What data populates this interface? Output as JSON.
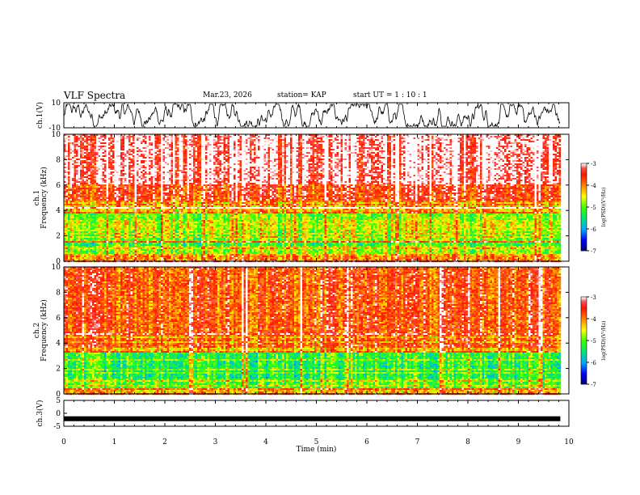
{
  "header": {
    "title": "VLF Spectra",
    "date": "Mar.23, 2026",
    "station": "station= KAP",
    "start": "start  UT =   1 : 10 : 1"
  },
  "chart_data": [
    {
      "type": "line",
      "name": "ch1-waveform",
      "ylabel": "ch.1(V)",
      "ylim": [
        -10,
        10
      ],
      "yticks": [
        "10",
        "-10"
      ],
      "xlim": [
        0,
        10
      ],
      "x_data_end": 9.83,
      "description_values": "noisy waveform oscillating roughly between -9 and 9 V"
    },
    {
      "type": "heatmap",
      "name": "ch1-spectrogram",
      "ylabel_line1": "ch.1",
      "ylabel_line2": "Frequency (kHz)",
      "ylim": [
        0,
        10
      ],
      "yticks": [
        "0",
        "2",
        "4",
        "6",
        "8",
        "10"
      ],
      "xlim": [
        0,
        10
      ],
      "bands_khz": [
        {
          "from": 0,
          "to": 0.5,
          "level": -4.0
        },
        {
          "from": 0.5,
          "to": 1.2,
          "level": -4.8
        },
        {
          "from": 1.2,
          "to": 1.6,
          "level": -5.2
        },
        {
          "from": 1.6,
          "to": 2.4,
          "level": -4.9
        },
        {
          "from": 2.4,
          "to": 3.2,
          "level": -4.6
        },
        {
          "from": 3.2,
          "to": 3.7,
          "level": -4.9
        },
        {
          "from": 3.7,
          "to": 4.8,
          "level": -4.3
        },
        {
          "from": 4.8,
          "to": 6.0,
          "level": -3.6
        },
        {
          "from": 6.0,
          "to": 10.0,
          "level": -3.1
        }
      ],
      "colorbar": {
        "label": "log(PSD)(V²/Hz)",
        "range": [
          -7,
          -3
        ],
        "ticks": [
          "-3",
          "-4",
          "-5",
          "-6",
          "-7"
        ]
      }
    },
    {
      "type": "heatmap",
      "name": "ch2-spectrogram",
      "ylabel_line1": "ch.2",
      "ylabel_line2": "Frequency (kHz)",
      "ylim": [
        0,
        10
      ],
      "yticks": [
        "0",
        "2",
        "4",
        "6",
        "8",
        "10"
      ],
      "xlim": [
        0,
        10
      ],
      "bands_khz": [
        {
          "from": 0,
          "to": 0.5,
          "level": -4.2
        },
        {
          "from": 0.5,
          "to": 1.2,
          "level": -5.0
        },
        {
          "from": 1.2,
          "to": 2.2,
          "level": -5.3
        },
        {
          "from": 2.2,
          "to": 3.3,
          "level": -5.2
        },
        {
          "from": 3.3,
          "to": 4.5,
          "level": -4.2
        },
        {
          "from": 4.5,
          "to": 10.0,
          "level": -3.7
        }
      ],
      "colorbar": {
        "label": "log(PSD)(V²/Hz)",
        "range": [
          -7,
          -3
        ],
        "ticks": [
          "-3",
          "-4",
          "-5",
          "-6",
          "-7"
        ]
      }
    },
    {
      "type": "line",
      "name": "ch3-waveform",
      "ylabel": "ch.3(V)",
      "ylim": [
        -5,
        5
      ],
      "yticks": [
        "5",
        "0",
        "-5"
      ],
      "xlim": [
        0,
        10
      ],
      "x_data_end": 9.83,
      "level": -2.1,
      "xlabel": "Time (min)",
      "xticks": [
        "0",
        "1",
        "2",
        "3",
        "4",
        "5",
        "6",
        "7",
        "8",
        "9",
        "10"
      ]
    }
  ],
  "colors": {
    "frame": "#000000",
    "trace": "#000000"
  }
}
